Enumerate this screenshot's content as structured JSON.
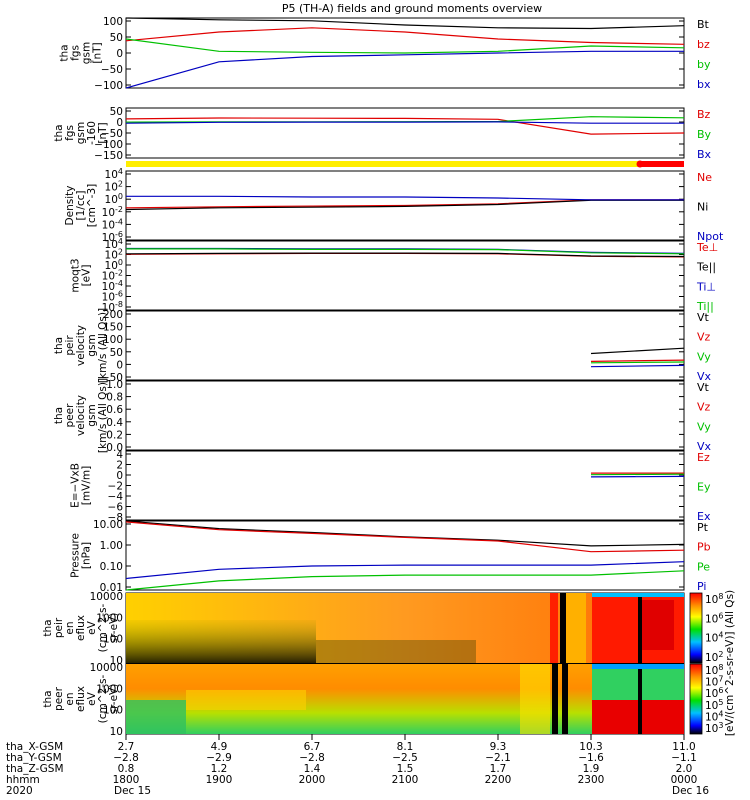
{
  "figure": {
    "title": "P5 (TH-A) fields and ground moments overview"
  },
  "panels": [
    {
      "id": "p1",
      "ylabel_lines": [
        "tha",
        "fgs",
        "gsm",
        "[nT]"
      ],
      "ticks": [
        "100",
        "50",
        "0",
        "−50",
        "−100"
      ],
      "legend": [
        {
          "text": "Bt",
          "color": "#000000"
        },
        {
          "text": "bz",
          "color": "#e00000"
        },
        {
          "text": "by",
          "color": "#00c000"
        },
        {
          "text": "bx",
          "color": "#0000c0"
        }
      ]
    },
    {
      "id": "p2",
      "ylabel_lines": [
        "tha",
        "fgs",
        "gsm",
        "-160",
        "[nT]"
      ],
      "ticks": [
        "50",
        "0",
        "−50",
        "−100",
        "−150"
      ],
      "legend": [
        {
          "text": "Bz",
          "color": "#e00000"
        },
        {
          "text": "By",
          "color": "#00c000"
        },
        {
          "text": "Bx",
          "color": "#0000c0"
        }
      ]
    },
    {
      "id": "p3",
      "ylabel_lines": [
        "Density",
        "[1/cc]",
        "[cm^-3]"
      ],
      "ticks": [
        "10^4",
        "10^2",
        "10^0",
        "10^-2",
        "10^-4",
        "10^-6"
      ],
      "legend": [
        {
          "text": "Ne",
          "color": "#e00000"
        },
        {
          "text": "Ni",
          "color": "#000000"
        },
        {
          "text": "Npot",
          "color": "#0000c0"
        }
      ]
    },
    {
      "id": "p4",
      "ylabel_lines": [
        "moqt3",
        "[eV]"
      ],
      "ticks": [
        "10^4",
        "10^2",
        "10^0",
        "10^-2",
        "10^-4",
        "10^-6",
        "10^-8"
      ],
      "legend": [
        {
          "text": "Te⊥",
          "color": "#e00000"
        },
        {
          "text": "Te||",
          "color": "#000000"
        },
        {
          "text": "Ti⊥",
          "color": "#0000c0"
        },
        {
          "text": "Ti||",
          "color": "#00c000"
        }
      ]
    },
    {
      "id": "p5",
      "ylabel_lines": [
        "tha",
        "peir",
        "velocity",
        "gsm",
        "[km/s (All Qs)]"
      ],
      "ticks": [
        "200",
        "150",
        "100",
        "50",
        "0",
        "−50"
      ],
      "legend": [
        {
          "text": "Vt",
          "color": "#000000"
        },
        {
          "text": "Vz",
          "color": "#e00000"
        },
        {
          "text": "Vy",
          "color": "#00c000"
        },
        {
          "text": "Vx",
          "color": "#0000c0"
        }
      ]
    },
    {
      "id": "p6",
      "ylabel_lines": [
        "tha",
        "peer",
        "velocity",
        "gsm",
        "[km/s (All Qs)]"
      ],
      "ticks": [
        "1.0",
        "0.8",
        "0.6",
        "0.4",
        "0.2",
        "0.0"
      ],
      "legend": [
        {
          "text": "Vt",
          "color": "#000000"
        },
        {
          "text": "Vz",
          "color": "#e00000"
        },
        {
          "text": "Vy",
          "color": "#00c000"
        },
        {
          "text": "Vx",
          "color": "#0000c0"
        }
      ]
    },
    {
      "id": "p7",
      "ylabel_lines": [
        "E=−VxB",
        "[mV/m]"
      ],
      "ticks": [
        "4",
        "2",
        "0",
        "−2",
        "−4",
        "−6",
        "−8"
      ],
      "legend": [
        {
          "text": "Ez",
          "color": "#e00000"
        },
        {
          "text": "Ey",
          "color": "#00c000"
        },
        {
          "text": "Ex",
          "color": "#0000c0"
        }
      ]
    },
    {
      "id": "p8",
      "ylabel_lines": [
        "Pressure",
        "[nPa]"
      ],
      "ticks": [
        "10.00",
        "1.00",
        "0.10",
        "0.01"
      ],
      "legend": [
        {
          "text": "Pt",
          "color": "#000000"
        },
        {
          "text": "Pb",
          "color": "#e00000"
        },
        {
          "text": "Pe",
          "color": "#00c000"
        },
        {
          "text": "Pi",
          "color": "#0000c0"
        }
      ]
    },
    {
      "id": "p9",
      "ylabel_lines": [
        "tha",
        "peir",
        "en",
        "eflux",
        "eV",
        "(cm^2-s-",
        "sr-eV)"
      ],
      "ticks": [
        "10000",
        "1000",
        "100",
        "10"
      ]
    },
    {
      "id": "p10",
      "ylabel_lines": [
        "tha",
        "peer",
        "en",
        "eflux",
        "eV",
        "(cm^2-s-",
        "sr-eV)"
      ],
      "ticks": [
        "10000",
        "1000",
        "100",
        "10"
      ]
    }
  ],
  "colorbar": {
    "label": "[eV/(cm^2-s-sr-eV)] (All Qs)",
    "ion_ticks": [
      "10^8",
      "10^6",
      "10^4",
      "10^2"
    ],
    "elec_ticks": [
      "10^8",
      "10^7",
      "10^6",
      "10^5",
      "10^4",
      "10^3"
    ]
  },
  "bottom": {
    "row_labels": [
      "tha_X-GSM",
      "tha_Y-GSM",
      "tha_Z-GSM",
      "hhmm",
      "2020"
    ],
    "columns": [
      {
        "x": "2.7",
        "y": "−2.8",
        "z": "0.8",
        "hhmm": "1800",
        "date": "Dec 15"
      },
      {
        "x": "4.9",
        "y": "−2.9",
        "z": "1.2",
        "hhmm": "1900",
        "date": ""
      },
      {
        "x": "6.7",
        "y": "−2.8",
        "z": "1.4",
        "hhmm": "2000",
        "date": ""
      },
      {
        "x": "8.1",
        "y": "−2.5",
        "z": "1.5",
        "hhmm": "2100",
        "date": ""
      },
      {
        "x": "9.3",
        "y": "−2.1",
        "z": "1.7",
        "hhmm": "2200",
        "date": ""
      },
      {
        "x": "10.3",
        "y": "−1.6",
        "z": "1.9",
        "hhmm": "2300",
        "date": ""
      },
      {
        "x": "11.0",
        "y": "−1.1",
        "z": "2.0",
        "hhmm": "0000",
        "date": "Dec 16"
      }
    ]
  },
  "chart_data": {
    "type": "line",
    "title": "P5 (TH-A) fields and ground moments overview",
    "x": [
      "1800",
      "1900",
      "2000",
      "2100",
      "2200",
      "2300",
      "0000"
    ],
    "xlabel": "hhmm",
    "panels": [
      {
        "name": "tha fgs gsm [nT]",
        "ylim": [
          -100,
          100
        ],
        "series": [
          {
            "name": "Bt",
            "values": [
              100,
              95,
              92,
              80,
              72,
              70,
              78
            ]
          },
          {
            "name": "bz",
            "values": [
              35,
              60,
              72,
              60,
              40,
              30,
              25
            ]
          },
          {
            "name": "by",
            "values": [
              40,
              5,
              2,
              0,
              5,
              20,
              15
            ]
          },
          {
            "name": "bx",
            "values": [
              -100,
              -25,
              -10,
              -5,
              0,
              5,
              5
            ]
          }
        ]
      },
      {
        "name": "tha fgs gsm -160 [nT]",
        "ylim": [
          -170,
          60
        ],
        "series": [
          {
            "name": "Bz",
            "values": [
              10,
              14,
              13,
              12,
              8,
              -60,
              -55
            ]
          },
          {
            "name": "By",
            "values": [
              -5,
              -4,
              -4,
              -3,
              -2,
              20,
              15
            ]
          },
          {
            "name": "Bx",
            "values": [
              -10,
              -6,
              -5,
              -5,
              -4,
              -10,
              -10
            ]
          }
        ]
      },
      {
        "name": "Density [1/cc]",
        "ylim": [
          "1e-7",
          "1e5"
        ],
        "scale": "log",
        "series": [
          {
            "name": "Ne",
            "values": [
              0.04,
              0.06,
              0.08,
              0.1,
              0.2,
              1.0,
              1.0
            ]
          },
          {
            "name": "Ni",
            "values": [
              0.02,
              0.04,
              0.05,
              0.07,
              0.15,
              0.8,
              0.8
            ]
          },
          {
            "name": "Npot",
            "values": [
              4,
              4,
              3,
              3,
              2,
              1,
              1
            ]
          }
        ]
      },
      {
        "name": "moqt3 [eV]",
        "ylim": [
          "1e-9",
          "1e5"
        ],
        "scale": "log",
        "series": [
          {
            "name": "Te⊥",
            "values": [
              200,
              250,
              300,
              300,
              250,
              80,
              60
            ]
          },
          {
            "name": "Te||",
            "values": [
              250,
              300,
              350,
              350,
              300,
              90,
              70
            ]
          },
          {
            "name": "Ti⊥",
            "values": [
              3000,
              3000,
              2500,
              2500,
              2000,
              500,
              300
            ]
          },
          {
            "name": "Ti||",
            "values": [
              2500,
              2500,
              2000,
              2000,
              1800,
              400,
              250
            ]
          }
        ]
      },
      {
        "name": "tha peir velocity gsm [km/s (All Qs)]",
        "ylim": [
          -60,
          200
        ],
        "series": [
          {
            "name": "Vt",
            "values": [
              null,
              null,
              null,
              null,
              null,
              40,
              60
            ]
          },
          {
            "name": "Vz",
            "values": [
              null,
              null,
              null,
              null,
              null,
              10,
              15
            ]
          },
          {
            "name": "Vy",
            "values": [
              null,
              null,
              null,
              null,
              null,
              5,
              8
            ]
          },
          {
            "name": "Vx",
            "values": [
              null,
              null,
              null,
              null,
              null,
              -10,
              -5
            ]
          }
        ]
      },
      {
        "name": "E=-VxB [mV/m]",
        "ylim": [
          -8,
          4.5
        ],
        "series": [
          {
            "name": "Ez",
            "values": [
              null,
              null,
              null,
              null,
              null,
              0.5,
              0.5
            ]
          },
          {
            "name": "Ey",
            "values": [
              null,
              null,
              null,
              null,
              null,
              0.2,
              0.3
            ]
          },
          {
            "name": "Ex",
            "values": [
              null,
              null,
              null,
              null,
              null,
              -0.2,
              -0.1
            ]
          }
        ]
      },
      {
        "name": "Pressure [nPa]",
        "ylim": [
          0.005,
          20
        ],
        "scale": "log",
        "series": [
          {
            "name": "Pt",
            "values": [
              20,
              8,
              5,
              3,
              2,
              1,
              1.2
            ]
          },
          {
            "name": "Pb",
            "values": [
              18,
              7,
              4.5,
              2.8,
              1.8,
              0.5,
              0.6
            ]
          },
          {
            "name": "Pe",
            "values": [
              0.005,
              0.015,
              0.025,
              0.03,
              0.03,
              0.03,
              0.05
            ]
          },
          {
            "name": "Pi",
            "values": [
              0.02,
              0.06,
              0.09,
              0.1,
              0.1,
              0.1,
              0.15
            ]
          }
        ]
      }
    ]
  }
}
